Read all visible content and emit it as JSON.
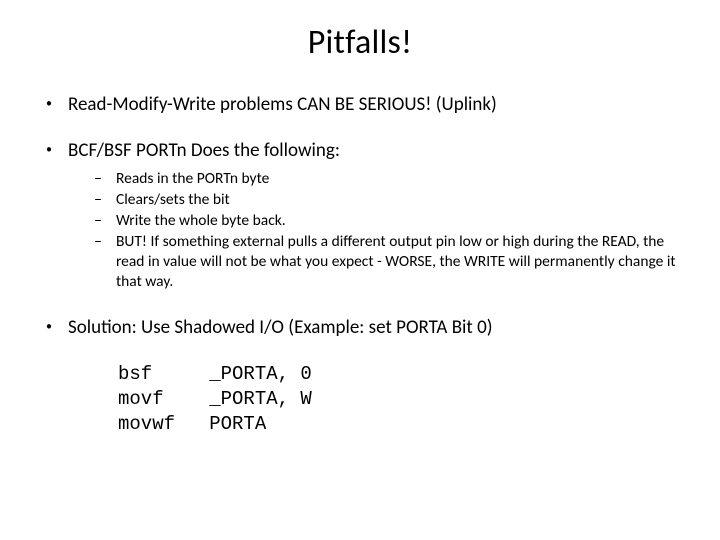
{
  "slide": {
    "title": "Pitfalls!",
    "bullets": {
      "b1": "Read-Modify-Write problems CAN BE SERIOUS! (Uplink)",
      "b2": "BCF/BSF PORTn Does the following:",
      "sub": {
        "s1": "Reads in the PORTn byte",
        "s2": "Clears/sets the bit",
        "s3": "Write the whole byte back.",
        "s4": "BUT! If something external pulls a different output pin low or high during the READ, the read in value will not be what you expect - WORSE, the WRITE will permanently change it that way."
      },
      "b3": "Solution: Use Shadowed I/O (Example: set PORTA Bit 0)"
    },
    "code": {
      "line1": "bsf     _PORTA, 0",
      "line2": "movf    _PORTA, W",
      "line3": "movwf   PORTA"
    }
  },
  "style": {
    "background_color": "#ffffff",
    "text_color": "#000000",
    "title_fontsize": 34,
    "body_fontsize": 19,
    "sub_fontsize": 15.5,
    "code_font": "Courier New",
    "body_font": "Calibri"
  }
}
